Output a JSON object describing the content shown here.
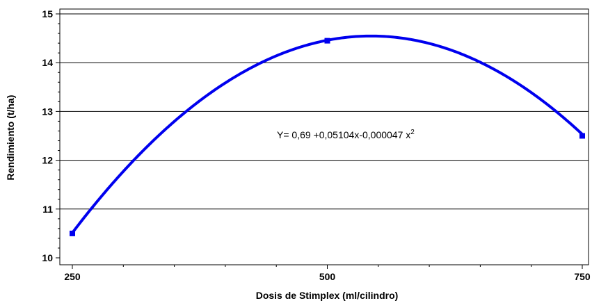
{
  "chart_data": {
    "type": "line",
    "xlabel": "Dosis de Stimplex  (ml/cilindro)",
    "ylabel": "Rendimiento (t/ha)",
    "xlim": [
      250,
      750
    ],
    "ylim": [
      10,
      15
    ],
    "x_ticks": [
      "250",
      "500",
      "750"
    ],
    "y_ticks": [
      "10",
      "11",
      "12",
      "13",
      "14",
      "15"
    ],
    "grid": "horizontal",
    "series": [
      {
        "equation": {
          "a": 0.69,
          "b": 0.05104,
          "c": -4.7e-05
        },
        "color": "#0000ee"
      }
    ],
    "points": [
      {
        "x": 250,
        "y": 10.5
      },
      {
        "x": 500,
        "y": 14.45
      },
      {
        "x": 750,
        "y": 12.5
      }
    ],
    "annotation": {
      "text": "Y= 0,69 +0,05104x-0,000047 x",
      "superscript": "2"
    }
  }
}
